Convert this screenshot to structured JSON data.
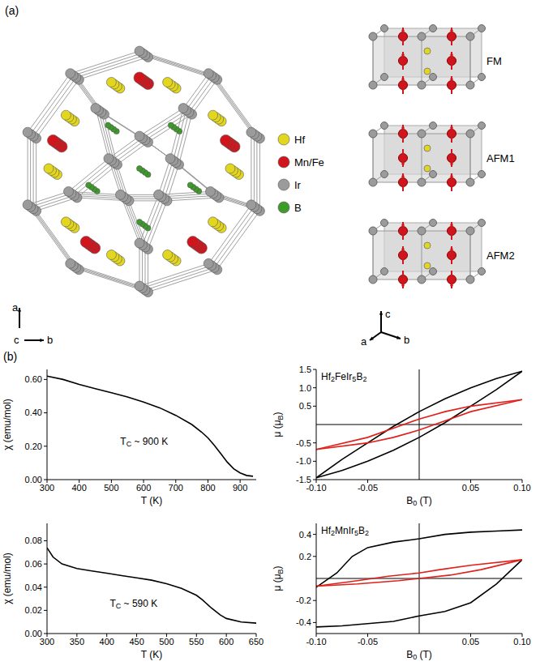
{
  "panel_a": {
    "label": "(a)",
    "legend": [
      {
        "name": "Hf",
        "color": "#e3d61f"
      },
      {
        "name": "Mn/Fe",
        "color": "#d0161c"
      },
      {
        "name": "Ir",
        "color": "#9b9b9b"
      },
      {
        "name": "B",
        "color": "#3d9b2a"
      }
    ],
    "axes_structure": [
      "a",
      "c",
      "b"
    ],
    "configurations": [
      "FM",
      "AFM1",
      "AFM2"
    ],
    "axes_cell": [
      "c",
      "a",
      "b"
    ]
  },
  "panel_b": {
    "label": "(b)"
  },
  "chart_data": [
    {
      "type": "line",
      "x_label": [
        "T (K)"
      ],
      "y_label": [
        "χ (emu/mol)"
      ],
      "annotation": [
        "T",
        "C",
        " ~ 900 K"
      ],
      "xlim": [
        300,
        950
      ],
      "xticks": [
        300,
        400,
        500,
        600,
        700,
        800,
        900
      ],
      "ylim": [
        0,
        0.66
      ],
      "yticks": [
        {
          "value": 0,
          "label": "0.00"
        },
        {
          "value": 0.2,
          "label": "0.20"
        },
        {
          "value": 0.4,
          "label": "0.40"
        },
        {
          "value": 0.6,
          "label": "0.60"
        }
      ],
      "grid": false,
      "series": [
        {
          "color": "#000000",
          "x": [
            300,
            350,
            400,
            450,
            500,
            550,
            600,
            650,
            700,
            750,
            780,
            800,
            820,
            840,
            860,
            880,
            900,
            920,
            940
          ],
          "values": [
            0.62,
            0.6,
            0.57,
            0.545,
            0.52,
            0.495,
            0.465,
            0.43,
            0.385,
            0.33,
            0.285,
            0.25,
            0.205,
            0.155,
            0.105,
            0.065,
            0.04,
            0.025,
            0.02
          ]
        }
      ]
    },
    {
      "type": "line",
      "title": [
        "Hf",
        "2",
        "FeIr",
        "5",
        "B",
        "2"
      ],
      "x_label": [
        "B",
        "0",
        " (T)"
      ],
      "y_label": [
        "μ (μ",
        "B",
        ")"
      ],
      "xlim": [
        -0.1,
        0.1
      ],
      "xticks": [
        {
          "value": -0.1,
          "label": "-0.10"
        },
        -0.05,
        0.05,
        {
          "value": 0.1,
          "label": "0.10"
        }
      ],
      "ylim": [
        -1.5,
        1.5
      ],
      "yticks": [
        -1.5,
        {
          "value": -1,
          "label": "-1.0"
        },
        -0.5,
        0.5,
        {
          "value": 1,
          "label": "1.0"
        },
        1.5
      ],
      "grid": false,
      "series": [
        {
          "color": "#000000",
          "x": [
            0.1,
            0.075,
            0.05,
            0.025,
            0,
            -0.025,
            -0.05,
            -0.075,
            -0.1
          ],
          "values": [
            1.45,
            1.25,
            1.0,
            0.7,
            0.35,
            -0.05,
            -0.5,
            -0.95,
            -1.45
          ]
        },
        {
          "color": "#000000",
          "x": [
            -0.1,
            -0.075,
            -0.05,
            -0.025,
            0,
            0.025,
            0.05,
            0.075,
            0.1
          ],
          "values": [
            -1.45,
            -1.25,
            -1.0,
            -0.7,
            -0.35,
            0.05,
            0.5,
            0.95,
            1.45
          ]
        },
        {
          "color": "#e0201b",
          "x": [
            0.1,
            0.05,
            0.025,
            0,
            -0.02,
            -0.05,
            -0.1
          ],
          "values": [
            0.68,
            0.5,
            0.35,
            0.15,
            -0.05,
            -0.35,
            -0.68
          ]
        },
        {
          "color": "#e0201b",
          "x": [
            -0.1,
            -0.05,
            -0.025,
            0,
            0.02,
            0.05,
            0.1
          ],
          "values": [
            -0.68,
            -0.5,
            -0.35,
            -0.15,
            0.05,
            0.35,
            0.68
          ]
        }
      ]
    },
    {
      "type": "line",
      "x_label": [
        "T (K)"
      ],
      "y_label": [
        "χ (emu/mol)"
      ],
      "annotation": [
        "T",
        "C",
        " ~ 590 K"
      ],
      "xlim": [
        300,
        650
      ],
      "xticks": [
        300,
        350,
        400,
        450,
        500,
        550,
        600,
        650
      ],
      "ylim": [
        0,
        0.095
      ],
      "yticks": [
        {
          "value": 0,
          "label": "0.00"
        },
        {
          "value": 0.02,
          "label": "0.02"
        },
        {
          "value": 0.04,
          "label": "0.04"
        },
        {
          "value": 0.06,
          "label": "0.06"
        },
        {
          "value": 0.08,
          "label": "0.08"
        }
      ],
      "grid": false,
      "series": [
        {
          "color": "#000000",
          "x": [
            300,
            310,
            325,
            350,
            375,
            400,
            425,
            450,
            475,
            500,
            525,
            550,
            560,
            575,
            590,
            600,
            625,
            650
          ],
          "values": [
            0.074,
            0.066,
            0.06,
            0.056,
            0.054,
            0.052,
            0.05,
            0.048,
            0.046,
            0.043,
            0.039,
            0.033,
            0.029,
            0.022,
            0.016,
            0.013,
            0.01,
            0.009
          ]
        }
      ]
    },
    {
      "type": "line",
      "title": [
        "Hf",
        "2",
        "MnIr",
        "5",
        "B",
        "2"
      ],
      "x_label": [
        "B",
        "0",
        " (T)"
      ],
      "y_label": [
        "μ (μ",
        "B",
        ")"
      ],
      "xlim": [
        -0.1,
        0.1
      ],
      "xticks": [
        {
          "value": -0.1,
          "label": "-0.10"
        },
        -0.05,
        0.05,
        {
          "value": 0.1,
          "label": "0.10"
        }
      ],
      "ylim": [
        -0.5,
        0.5
      ],
      "yticks": [
        -0.4,
        -0.2,
        0.2,
        0.4
      ],
      "grid": false,
      "series": [
        {
          "color": "#000000",
          "x": [
            0.1,
            0.075,
            0.05,
            0.025,
            0,
            -0.025,
            -0.05,
            -0.065,
            -0.08,
            -0.1
          ],
          "values": [
            0.44,
            0.43,
            0.42,
            0.4,
            0.36,
            0.33,
            0.28,
            0.2,
            0.05,
            -0.08
          ]
        },
        {
          "color": "#000000",
          "x": [
            -0.1,
            -0.075,
            -0.05,
            -0.025,
            0,
            0.025,
            0.05,
            0.075,
            0.1
          ],
          "values": [
            -0.44,
            -0.43,
            -0.41,
            -0.39,
            -0.34,
            -0.3,
            -0.22,
            -0.05,
            0.17
          ]
        },
        {
          "color": "#e0201b",
          "x": [
            0.1,
            0.05,
            0.02,
            0,
            -0.03,
            -0.06,
            -0.1
          ],
          "values": [
            0.17,
            0.12,
            0.08,
            0.05,
            0.02,
            -0.02,
            -0.07
          ]
        },
        {
          "color": "#e0201b",
          "x": [
            -0.1,
            -0.06,
            -0.02,
            0,
            0.03,
            0.06,
            0.1
          ],
          "values": [
            -0.07,
            -0.05,
            -0.02,
            0.0,
            0.03,
            0.08,
            0.17
          ]
        }
      ]
    }
  ]
}
